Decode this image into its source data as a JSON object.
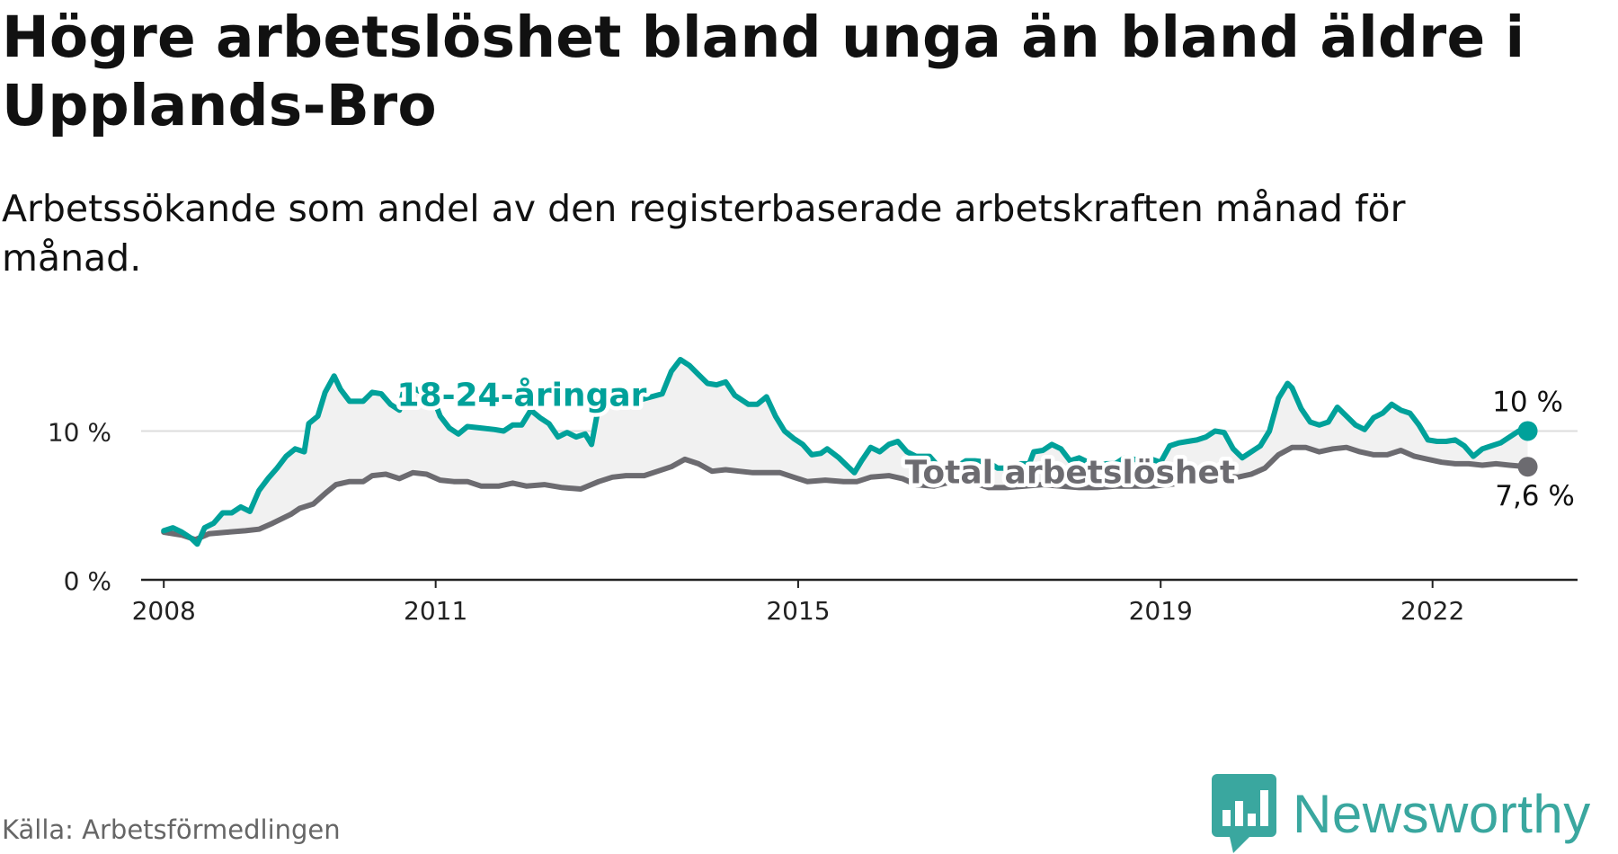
{
  "title": "Högre arbetslöshet bland unga än bland äldre i Upplands-Bro",
  "subtitle": "Arbetssökande som andel av den registerbaserade arbetskraften månad för månad.",
  "source": "Källa: Arbetsförmedlingen",
  "logo": {
    "text": "Newsworthy",
    "icon": "newsworthy-chart-bubble-icon",
    "color": "#3aa79f"
  },
  "chart_data": {
    "type": "line",
    "ylim": [
      0,
      14.8
    ],
    "xlim": [
      2007.75,
      2023.6
    ],
    "yticks": [
      {
        "value": 0,
        "label": "0 %"
      },
      {
        "value": 10,
        "label": "10 %"
      }
    ],
    "xticks": [
      {
        "value": 2008,
        "label": "2008"
      },
      {
        "value": 2011,
        "label": "2011"
      },
      {
        "value": 2015,
        "label": "2015"
      },
      {
        "value": 2019,
        "label": "2019"
      },
      {
        "value": 2022,
        "label": "2022"
      }
    ],
    "grid": "horizontal",
    "series": [
      {
        "name": "18-24-åringar",
        "color": "#00a19a",
        "end_label": "10 %",
        "label_at": [
          2011.95,
          11.7
        ],
        "points": [
          [
            2008.0,
            3.3
          ],
          [
            2008.1,
            3.5
          ],
          [
            2008.2,
            3.2
          ],
          [
            2008.3,
            2.8
          ],
          [
            2008.37,
            2.4
          ],
          [
            2008.45,
            3.5
          ],
          [
            2008.55,
            3.8
          ],
          [
            2008.65,
            4.5
          ],
          [
            2008.75,
            4.5
          ],
          [
            2008.85,
            4.9
          ],
          [
            2008.95,
            4.6
          ],
          [
            2009.05,
            6.0
          ],
          [
            2009.15,
            6.8
          ],
          [
            2009.25,
            7.5
          ],
          [
            2009.35,
            8.3
          ],
          [
            2009.45,
            8.8
          ],
          [
            2009.55,
            8.6
          ],
          [
            2009.6,
            10.5
          ],
          [
            2009.7,
            11.0
          ],
          [
            2009.78,
            12.6
          ],
          [
            2009.88,
            13.7
          ],
          [
            2009.95,
            12.8
          ],
          [
            2010.05,
            12.0
          ],
          [
            2010.2,
            12.0
          ],
          [
            2010.3,
            12.6
          ],
          [
            2010.4,
            12.5
          ],
          [
            2010.5,
            11.8
          ],
          [
            2010.6,
            11.4
          ],
          [
            2010.65,
            12.8
          ],
          [
            2010.75,
            12.9
          ],
          [
            2010.85,
            12.6
          ],
          [
            2010.95,
            12.6
          ],
          [
            2011.05,
            11.0
          ],
          [
            2011.15,
            10.2
          ],
          [
            2011.25,
            9.8
          ],
          [
            2011.35,
            10.3
          ],
          [
            2011.5,
            10.2
          ],
          [
            2011.65,
            10.1
          ],
          [
            2011.75,
            10.0
          ],
          [
            2011.85,
            10.4
          ],
          [
            2011.95,
            10.4
          ],
          [
            2012.05,
            11.4
          ],
          [
            2012.15,
            10.9
          ],
          [
            2012.25,
            10.5
          ],
          [
            2012.35,
            9.6
          ],
          [
            2012.45,
            9.9
          ],
          [
            2012.55,
            9.6
          ],
          [
            2012.65,
            9.8
          ],
          [
            2012.72,
            9.1
          ],
          [
            2012.8,
            11.7
          ],
          [
            2012.9,
            12.0
          ],
          [
            2013.0,
            11.9
          ],
          [
            2013.2,
            12.0
          ],
          [
            2013.5,
            12.5
          ],
          [
            2013.6,
            14.0
          ],
          [
            2013.7,
            14.8
          ],
          [
            2013.8,
            14.4
          ],
          [
            2013.9,
            13.8
          ],
          [
            2014.0,
            13.2
          ],
          [
            2014.1,
            13.1
          ],
          [
            2014.2,
            13.3
          ],
          [
            2014.3,
            12.4
          ],
          [
            2014.45,
            11.8
          ],
          [
            2014.55,
            11.8
          ],
          [
            2014.65,
            12.3
          ],
          [
            2014.75,
            11.0
          ],
          [
            2014.85,
            10.0
          ],
          [
            2014.95,
            9.5
          ],
          [
            2015.05,
            9.1
          ],
          [
            2015.15,
            8.4
          ],
          [
            2015.25,
            8.5
          ],
          [
            2015.32,
            8.8
          ],
          [
            2015.45,
            8.2
          ],
          [
            2015.55,
            7.6
          ],
          [
            2015.62,
            7.2
          ],
          [
            2015.7,
            8.0
          ],
          [
            2015.8,
            8.9
          ],
          [
            2015.9,
            8.6
          ],
          [
            2016.0,
            9.1
          ],
          [
            2016.1,
            9.3
          ],
          [
            2016.2,
            8.6
          ],
          [
            2016.3,
            8.3
          ],
          [
            2016.45,
            8.3
          ],
          [
            2016.55,
            7.6
          ],
          [
            2016.65,
            7.3
          ],
          [
            2016.75,
            7.6
          ],
          [
            2016.85,
            8.0
          ],
          [
            2016.95,
            8.0
          ],
          [
            2017.1,
            7.9
          ],
          [
            2017.2,
            7.5
          ],
          [
            2017.35,
            7.5
          ],
          [
            2017.45,
            7.8
          ],
          [
            2017.55,
            7.8
          ],
          [
            2017.6,
            8.6
          ],
          [
            2017.7,
            8.7
          ],
          [
            2017.8,
            9.1
          ],
          [
            2017.9,
            8.8
          ],
          [
            2018.0,
            8.0
          ],
          [
            2018.1,
            8.2
          ],
          [
            2018.2,
            7.9
          ],
          [
            2018.3,
            7.6
          ],
          [
            2018.4,
            7.8
          ],
          [
            2018.5,
            7.8
          ],
          [
            2018.6,
            8.2
          ],
          [
            2018.7,
            8.1
          ],
          [
            2018.8,
            8.0
          ],
          [
            2018.9,
            8.1
          ],
          [
            2019.0,
            7.9
          ],
          [
            2019.1,
            9.0
          ],
          [
            2019.2,
            9.2
          ],
          [
            2019.3,
            9.3
          ],
          [
            2019.4,
            9.4
          ],
          [
            2019.5,
            9.6
          ],
          [
            2019.6,
            10.0
          ],
          [
            2019.7,
            9.9
          ],
          [
            2019.8,
            8.8
          ],
          [
            2019.9,
            8.2
          ],
          [
            2020.0,
            8.6
          ],
          [
            2020.1,
            9.0
          ],
          [
            2020.2,
            10.0
          ],
          [
            2020.3,
            12.2
          ],
          [
            2020.4,
            13.2
          ],
          [
            2020.45,
            12.9
          ],
          [
            2020.55,
            11.5
          ],
          [
            2020.65,
            10.6
          ],
          [
            2020.75,
            10.4
          ],
          [
            2020.85,
            10.6
          ],
          [
            2020.95,
            11.6
          ],
          [
            2021.05,
            11.0
          ],
          [
            2021.15,
            10.4
          ],
          [
            2021.25,
            10.1
          ],
          [
            2021.35,
            10.9
          ],
          [
            2021.45,
            11.2
          ],
          [
            2021.55,
            11.8
          ],
          [
            2021.65,
            11.4
          ],
          [
            2021.75,
            11.2
          ],
          [
            2021.85,
            10.4
          ],
          [
            2021.95,
            9.4
          ],
          [
            2022.05,
            9.3
          ],
          [
            2022.15,
            9.3
          ],
          [
            2022.25,
            9.4
          ],
          [
            2022.35,
            9.0
          ],
          [
            2022.45,
            8.3
          ],
          [
            2022.55,
            8.8
          ],
          [
            2022.65,
            9.0
          ],
          [
            2022.75,
            9.2
          ],
          [
            2022.85,
            9.6
          ],
          [
            2022.95,
            10.0
          ],
          [
            2023.05,
            10.0
          ]
        ]
      },
      {
        "name": "Total arbetslöshet",
        "color": "#6c6b70",
        "end_label": "7,6 %",
        "label_at": [
          2018.0,
          6.5
        ],
        "points": [
          [
            2008.0,
            3.2
          ],
          [
            2008.2,
            3.0
          ],
          [
            2008.35,
            2.7
          ],
          [
            2008.5,
            3.1
          ],
          [
            2008.7,
            3.2
          ],
          [
            2008.9,
            3.3
          ],
          [
            2009.05,
            3.4
          ],
          [
            2009.2,
            3.8
          ],
          [
            2009.4,
            4.4
          ],
          [
            2009.5,
            4.8
          ],
          [
            2009.65,
            5.1
          ],
          [
            2009.8,
            5.9
          ],
          [
            2009.9,
            6.4
          ],
          [
            2010.05,
            6.6
          ],
          [
            2010.2,
            6.6
          ],
          [
            2010.3,
            7.0
          ],
          [
            2010.45,
            7.1
          ],
          [
            2010.6,
            6.8
          ],
          [
            2010.75,
            7.2
          ],
          [
            2010.9,
            7.1
          ],
          [
            2011.05,
            6.7
          ],
          [
            2011.2,
            6.6
          ],
          [
            2011.35,
            6.6
          ],
          [
            2011.5,
            6.3
          ],
          [
            2011.7,
            6.3
          ],
          [
            2011.85,
            6.5
          ],
          [
            2012.0,
            6.3
          ],
          [
            2012.2,
            6.4
          ],
          [
            2012.4,
            6.2
          ],
          [
            2012.6,
            6.1
          ],
          [
            2012.8,
            6.6
          ],
          [
            2012.95,
            6.9
          ],
          [
            2013.1,
            7.0
          ],
          [
            2013.3,
            7.0
          ],
          [
            2013.45,
            7.3
          ],
          [
            2013.6,
            7.6
          ],
          [
            2013.75,
            8.1
          ],
          [
            2013.9,
            7.8
          ],
          [
            2014.05,
            7.3
          ],
          [
            2014.2,
            7.4
          ],
          [
            2014.35,
            7.3
          ],
          [
            2014.5,
            7.2
          ],
          [
            2014.65,
            7.2
          ],
          [
            2014.8,
            7.2
          ],
          [
            2014.95,
            6.9
          ],
          [
            2015.1,
            6.6
          ],
          [
            2015.3,
            6.7
          ],
          [
            2015.5,
            6.6
          ],
          [
            2015.65,
            6.6
          ],
          [
            2015.8,
            6.9
          ],
          [
            2016.0,
            7.0
          ],
          [
            2016.15,
            6.8
          ],
          [
            2016.3,
            6.4
          ],
          [
            2016.5,
            6.3
          ],
          [
            2016.7,
            6.6
          ],
          [
            2016.9,
            6.6
          ],
          [
            2017.1,
            6.2
          ],
          [
            2017.3,
            6.2
          ],
          [
            2017.5,
            6.3
          ],
          [
            2017.7,
            6.4
          ],
          [
            2017.9,
            6.3
          ],
          [
            2018.1,
            6.2
          ],
          [
            2018.3,
            6.2
          ],
          [
            2018.5,
            6.3
          ],
          [
            2018.7,
            6.3
          ],
          [
            2018.9,
            6.3
          ],
          [
            2019.1,
            6.4
          ],
          [
            2019.3,
            6.6
          ],
          [
            2019.5,
            6.8
          ],
          [
            2019.7,
            7.0
          ],
          [
            2019.85,
            6.9
          ],
          [
            2020.0,
            7.1
          ],
          [
            2020.15,
            7.5
          ],
          [
            2020.3,
            8.4
          ],
          [
            2020.45,
            8.9
          ],
          [
            2020.6,
            8.9
          ],
          [
            2020.75,
            8.6
          ],
          [
            2020.9,
            8.8
          ],
          [
            2021.05,
            8.9
          ],
          [
            2021.2,
            8.6
          ],
          [
            2021.35,
            8.4
          ],
          [
            2021.5,
            8.4
          ],
          [
            2021.65,
            8.7
          ],
          [
            2021.8,
            8.3
          ],
          [
            2021.95,
            8.1
          ],
          [
            2022.1,
            7.9
          ],
          [
            2022.25,
            7.8
          ],
          [
            2022.4,
            7.8
          ],
          [
            2022.55,
            7.7
          ],
          [
            2022.7,
            7.8
          ],
          [
            2022.85,
            7.7
          ],
          [
            2023.05,
            7.6
          ]
        ]
      }
    ]
  }
}
